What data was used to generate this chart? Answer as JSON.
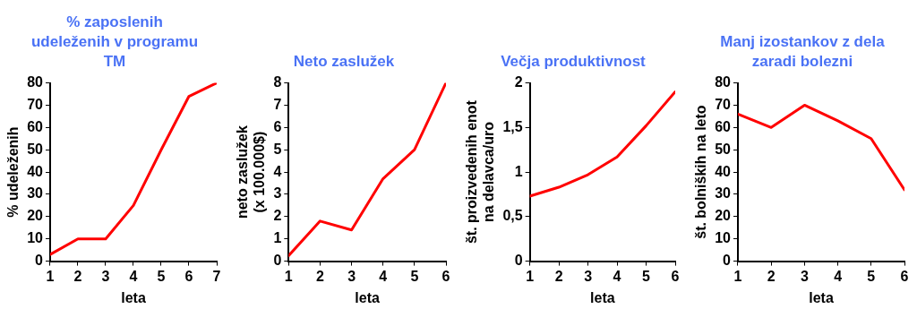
{
  "chart_data": [
    {
      "type": "line",
      "title": "% zaposlenih udeleženih v programu TM",
      "xlabel": "leta",
      "ylabel": "% udeleženih",
      "x": [
        1,
        2,
        3,
        4,
        5,
        6,
        7
      ],
      "xlim": [
        1,
        7
      ],
      "xticks": [
        1,
        2,
        3,
        4,
        5,
        6,
        7
      ],
      "ylim": [
        0,
        80
      ],
      "yticks": [
        0,
        10,
        20,
        30,
        40,
        50,
        60,
        70,
        80
      ],
      "grid": false,
      "legend": false,
      "marker": "none",
      "series": [
        {
          "color": "#ff0000",
          "values": [
            3,
            10,
            10,
            25,
            50,
            74,
            80
          ]
        }
      ]
    },
    {
      "type": "line",
      "title": "Neto zaslužek",
      "xlabel": "leta",
      "ylabel": "neto zaslužek\n(x 100.000$)",
      "x": [
        1,
        2,
        3,
        4,
        5,
        6
      ],
      "xlim": [
        1,
        6
      ],
      "xticks": [
        1,
        2,
        3,
        4,
        5,
        6
      ],
      "ylim": [
        0,
        8
      ],
      "yticks": [
        0,
        1,
        2,
        3,
        4,
        5,
        6,
        7,
        8
      ],
      "grid": false,
      "legend": false,
      "marker": "none",
      "series": [
        {
          "color": "#ff0000",
          "values": [
            0.25,
            1.8,
            1.4,
            3.7,
            5,
            8
          ]
        }
      ]
    },
    {
      "type": "line",
      "title": "Večja produktivnost",
      "xlabel": "leta",
      "ylabel": "št. proizvedenih enot\nna delavca/uro",
      "x": [
        1,
        2,
        3,
        4,
        5,
        6
      ],
      "xlim": [
        1,
        6
      ],
      "xticks": [
        1,
        2,
        3,
        4,
        5,
        6
      ],
      "ylim": [
        0,
        2
      ],
      "yticks": [
        0,
        {
          "value": 0.5,
          "label": "0,5"
        },
        1,
        {
          "value": 1.5,
          "label": "1,5"
        },
        2
      ],
      "grid": false,
      "legend": false,
      "marker": "none",
      "series": [
        {
          "color": "#ff0000",
          "values": [
            0.73,
            0.83,
            0.97,
            1.17,
            1.52,
            1.9
          ]
        }
      ]
    },
    {
      "type": "line",
      "title": "Manj izostankov z dela zaradi bolezni",
      "xlabel": "leta",
      "ylabel": "št. bolniških na leto",
      "x": [
        1,
        2,
        3,
        4,
        5,
        6
      ],
      "xlim": [
        1,
        6
      ],
      "xticks": [
        1,
        2,
        3,
        4,
        5,
        6
      ],
      "ylim": [
        0,
        80
      ],
      "yticks": [
        0,
        10,
        20,
        30,
        40,
        50,
        60,
        70,
        80
      ],
      "grid": false,
      "legend": false,
      "marker": "none",
      "series": [
        {
          "color": "#ff0000",
          "values": [
            66,
            60,
            70,
            63,
            55,
            32
          ]
        }
      ]
    }
  ]
}
